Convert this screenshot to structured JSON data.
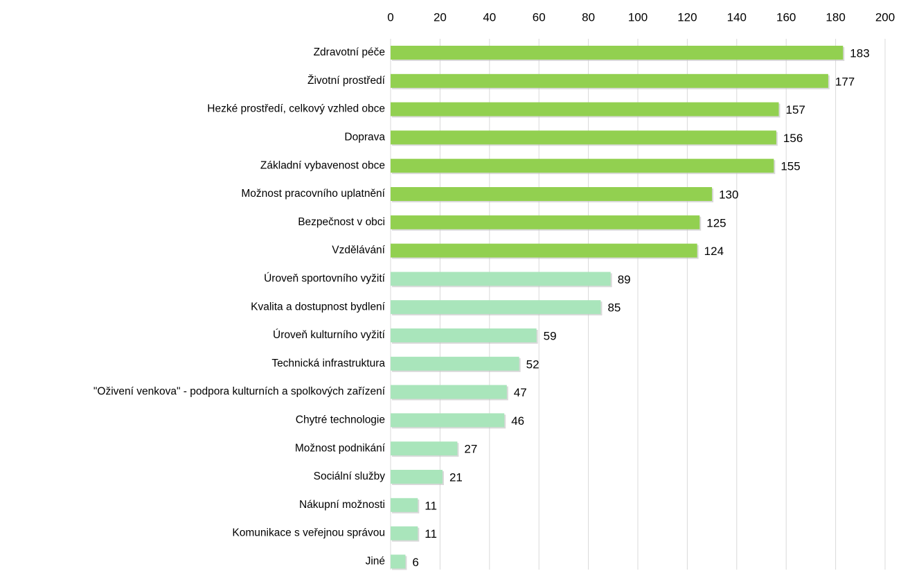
{
  "chart_data": {
    "type": "hbar",
    "categories": [
      "Zdravotní péče",
      "Životní prostředí",
      "Hezké prostředí, celkový vzhled obce",
      "Doprava",
      "Základní vybavenost obce",
      "Možnost pracovního uplatnění",
      "Bezpečnost v obci",
      "Vzdělávání",
      "Úroveň sportovního vyžití",
      "Kvalita a dostupnost bydlení",
      "Úroveň kulturního vyžití",
      "Technická infrastruktura",
      "\"Oživení venkova\" - podpora kulturních a spolkových zařízení",
      "Chytré technologie",
      "Možnost podnikání",
      "Sociální služby",
      "Nákupní možnosti",
      "Komunikace s veřejnou správou",
      "Jiné"
    ],
    "values": [
      183,
      177,
      157,
      156,
      155,
      130,
      125,
      124,
      89,
      85,
      59,
      52,
      47,
      46,
      27,
      21,
      11,
      11,
      6
    ],
    "colors": [
      "#92d050",
      "#92d050",
      "#92d050",
      "#92d050",
      "#92d050",
      "#92d050",
      "#92d050",
      "#92d050",
      "#a9e5bb",
      "#a9e5bb",
      "#a9e5bb",
      "#a9e5bb",
      "#a9e5bb",
      "#a9e5bb",
      "#a9e5bb",
      "#a9e5bb",
      "#a9e5bb",
      "#a9e5bb",
      "#a9e5bb"
    ],
    "xlim": [
      0,
      200
    ],
    "xticks": [
      0,
      20,
      40,
      60,
      80,
      100,
      120,
      140,
      160,
      180,
      200
    ],
    "grid": true
  }
}
